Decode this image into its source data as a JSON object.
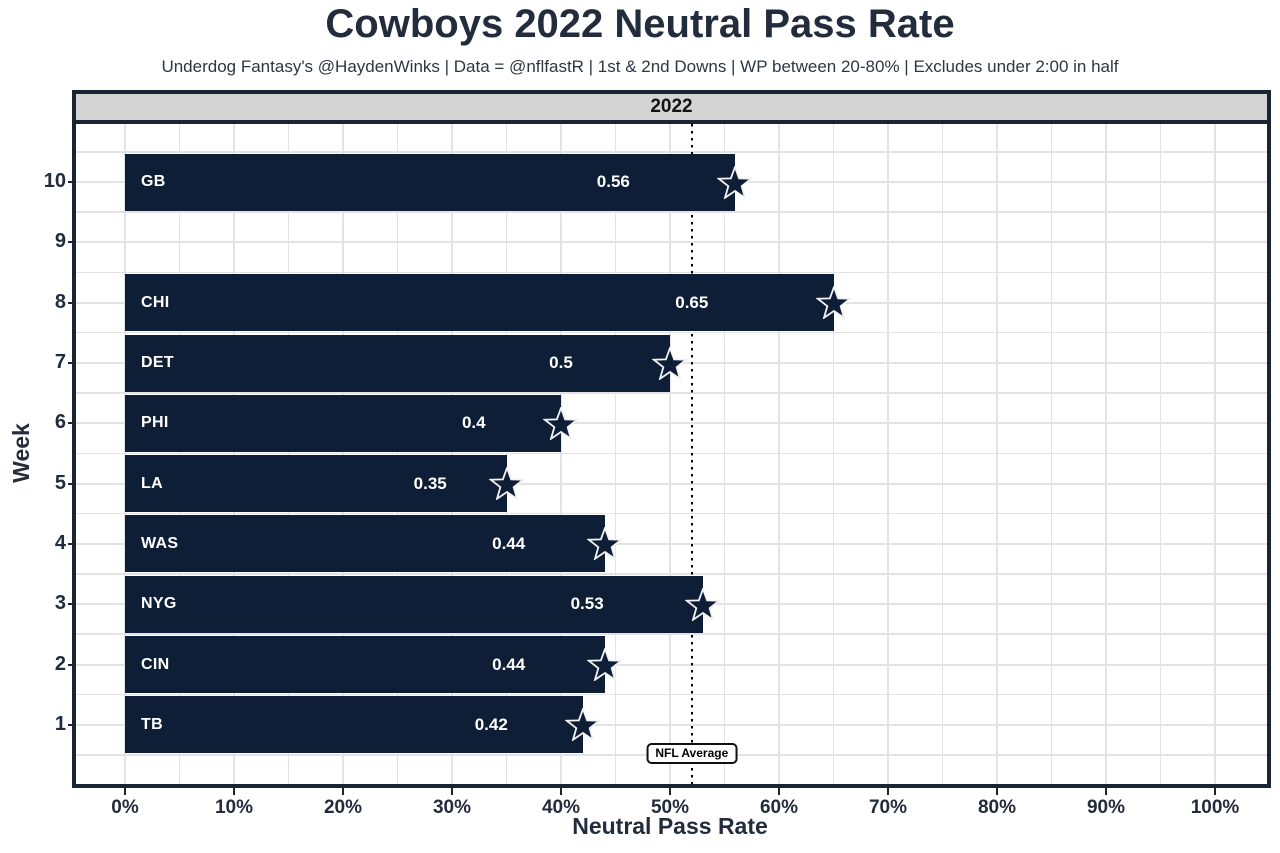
{
  "chart": {
    "title": "Cowboys 2022 Neutral Pass Rate",
    "subtitle": "Underdog Fantasy's @HaydenWinks | Data = @nflfastR | 1st & 2nd Downs | WP between 20-80% | Excludes under 2:00 in half",
    "facet_label": "2022",
    "x_axis_title": "Neutral Pass Rate",
    "y_axis_title": "Week"
  },
  "chart_data": {
    "type": "bar",
    "orientation": "horizontal",
    "title": "Cowboys 2022 Neutral Pass Rate",
    "subtitle": "Underdog Fantasy's @HaydenWinks | Data = @nflfastR | 1st & 2nd Downs | WP between 20-80% | Excludes under 2:00 in half",
    "facet": "2022",
    "xlabel": "Neutral Pass Rate",
    "ylabel": "Week",
    "xlim": [
      0,
      1.05
    ],
    "x_tick_labels": [
      "0%",
      "10%",
      "20%",
      "30%",
      "40%",
      "50%",
      "60%",
      "70%",
      "80%",
      "90%",
      "100%"
    ],
    "x_tick_values": [
      0,
      0.1,
      0.2,
      0.3,
      0.4,
      0.5,
      0.6,
      0.7,
      0.8,
      0.9,
      1.0
    ],
    "y_categories": [
      "10",
      "9",
      "8",
      "7",
      "6",
      "5",
      "4",
      "3",
      "2",
      "1"
    ],
    "grid": true,
    "legend_position": "none",
    "marker": "cowboys-star",
    "bars": [
      {
        "week": "10",
        "opponent": "GB",
        "rate": 0.56,
        "value_label": "0.56"
      },
      {
        "week": "9",
        "opponent": null,
        "rate": null,
        "value_label": null
      },
      {
        "week": "8",
        "opponent": "CHI",
        "rate": 0.65,
        "value_label": "0.65"
      },
      {
        "week": "7",
        "opponent": "DET",
        "rate": 0.5,
        "value_label": "0.5"
      },
      {
        "week": "6",
        "opponent": "PHI",
        "rate": 0.4,
        "value_label": "0.4"
      },
      {
        "week": "5",
        "opponent": "LA",
        "rate": 0.35,
        "value_label": "0.35"
      },
      {
        "week": "4",
        "opponent": "WAS",
        "rate": 0.44,
        "value_label": "0.44"
      },
      {
        "week": "3",
        "opponent": "NYG",
        "rate": 0.53,
        "value_label": "0.53"
      },
      {
        "week": "2",
        "opponent": "CIN",
        "rate": 0.44,
        "value_label": "0.44"
      },
      {
        "week": "1",
        "opponent": "TB",
        "rate": 0.42,
        "value_label": "0.42"
      }
    ],
    "reference_line": {
      "value": 0.52,
      "label": "NFL Average",
      "style": "dotted"
    }
  },
  "colors": {
    "bar_fill": "#0d1e36",
    "text": "#232c3c",
    "panel_border": "#1b2435",
    "strip_background": "#d4d4d4",
    "gridline": "#e3e3e3",
    "bar_text": "#ffffff",
    "reference_line": "#000000",
    "background": "#ffffff"
  }
}
